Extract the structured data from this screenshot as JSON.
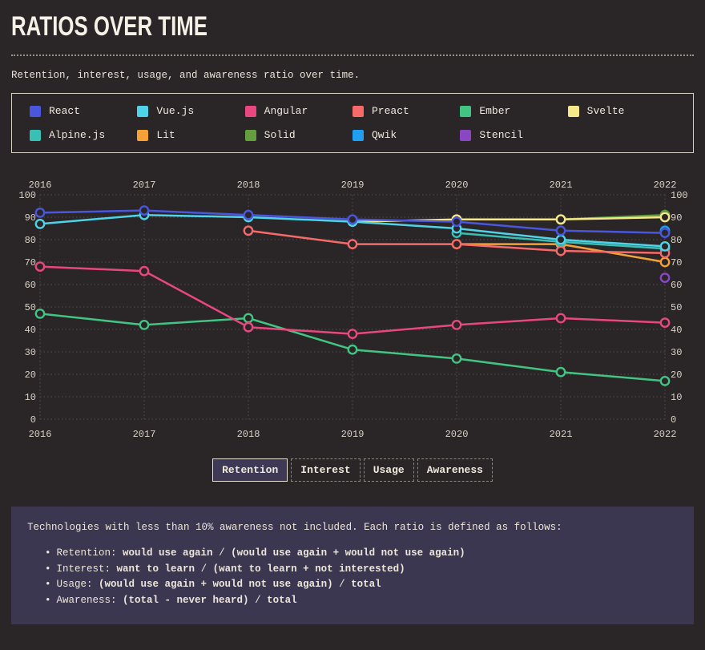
{
  "header": {
    "title": "RATIOS OVER TIME",
    "subtitle": "Retention, interest, usage, and awareness ratio over time."
  },
  "legend": {
    "items": [
      {
        "name": "React",
        "color": "#4a57dd"
      },
      {
        "name": "Vue.js",
        "color": "#4ed3e9"
      },
      {
        "name": "Angular",
        "color": "#e8487f"
      },
      {
        "name": "Preact",
        "color": "#f66a6a"
      },
      {
        "name": "Ember",
        "color": "#42c483"
      },
      {
        "name": "Svelte",
        "color": "#f6e88a"
      },
      {
        "name": "Alpine.js",
        "color": "#38c0b4"
      },
      {
        "name": "Lit",
        "color": "#f4a238"
      },
      {
        "name": "Solid",
        "color": "#649e3f"
      },
      {
        "name": "Qwik",
        "color": "#209ff2"
      },
      {
        "name": "Stencil",
        "color": "#8b46c4"
      }
    ]
  },
  "chart_data": {
    "type": "line",
    "metric": "Retention",
    "categories": [
      2016,
      2017,
      2018,
      2019,
      2020,
      2021,
      2022
    ],
    "ylim": [
      0,
      100
    ],
    "ytick_step": 10,
    "grid": true,
    "legend_position": "top",
    "axis_label_color": "#d9d3c7",
    "grid_color": "#534f50",
    "marker_fill": "#2a2527",
    "series": [
      {
        "name": "React",
        "color": "#4a57dd",
        "values": [
          92,
          93,
          91,
          89,
          88,
          84,
          83
        ]
      },
      {
        "name": "Vue.js",
        "color": "#4ed3e9",
        "values": [
          87,
          91,
          90,
          88,
          85,
          80,
          77
        ]
      },
      {
        "name": "Angular",
        "color": "#e8487f",
        "values": [
          68,
          66,
          41,
          38,
          42,
          45,
          43
        ]
      },
      {
        "name": "Preact",
        "color": "#f66a6a",
        "values": [
          null,
          null,
          84,
          78,
          78,
          75,
          74
        ]
      },
      {
        "name": "Ember",
        "color": "#42c483",
        "values": [
          47,
          42,
          45,
          31,
          27,
          21,
          17
        ]
      },
      {
        "name": "Svelte",
        "color": "#f6e88a",
        "values": [
          null,
          null,
          null,
          88,
          89,
          89,
          90
        ]
      },
      {
        "name": "Alpine.js",
        "color": "#38c0b4",
        "values": [
          null,
          null,
          null,
          null,
          83,
          79,
          76
        ]
      },
      {
        "name": "Lit",
        "color": "#f4a238",
        "values": [
          null,
          null,
          null,
          null,
          78,
          78,
          70
        ]
      },
      {
        "name": "Solid",
        "color": "#649e3f",
        "values": [
          null,
          null,
          null,
          null,
          null,
          89,
          91
        ]
      },
      {
        "name": "Qwik",
        "color": "#209ff2",
        "values": [
          null,
          null,
          null,
          null,
          null,
          null,
          84
        ]
      },
      {
        "name": "Stencil",
        "color": "#8b46c4",
        "values": [
          null,
          null,
          null,
          null,
          null,
          null,
          63
        ]
      }
    ]
  },
  "tabs": [
    {
      "label": "Retention",
      "active": true
    },
    {
      "label": "Interest",
      "active": false
    },
    {
      "label": "Usage",
      "active": false
    },
    {
      "label": "Awareness",
      "active": false
    }
  ],
  "footnote": {
    "intro": "Technologies with less than 10% awareness not included. Each ratio is defined as follows:",
    "bullet": "•",
    "items": [
      {
        "runs": [
          {
            "t": "Retention: ",
            "b": false
          },
          {
            "t": "would use again",
            "b": true
          },
          {
            "t": " / ",
            "b": false
          },
          {
            "t": "(would use again + would not use again)",
            "b": true
          }
        ]
      },
      {
        "runs": [
          {
            "t": "Interest: ",
            "b": false
          },
          {
            "t": "want to learn",
            "b": true
          },
          {
            "t": " / ",
            "b": false
          },
          {
            "t": "(want to learn + not interested)",
            "b": true
          }
        ]
      },
      {
        "runs": [
          {
            "t": "Usage: ",
            "b": false
          },
          {
            "t": "(would use again + would not use again)",
            "b": true
          },
          {
            "t": " / ",
            "b": false
          },
          {
            "t": "total",
            "b": true
          }
        ]
      },
      {
        "runs": [
          {
            "t": "Awareness: ",
            "b": false
          },
          {
            "t": "(total - never heard)",
            "b": true
          },
          {
            "t": " / ",
            "b": false
          },
          {
            "t": "total",
            "b": true
          }
        ]
      }
    ]
  },
  "colors": {
    "background": "#2a2527",
    "panel": "#3c3751",
    "text": "#ece6da",
    "legend_border": "#d8d2c6"
  }
}
